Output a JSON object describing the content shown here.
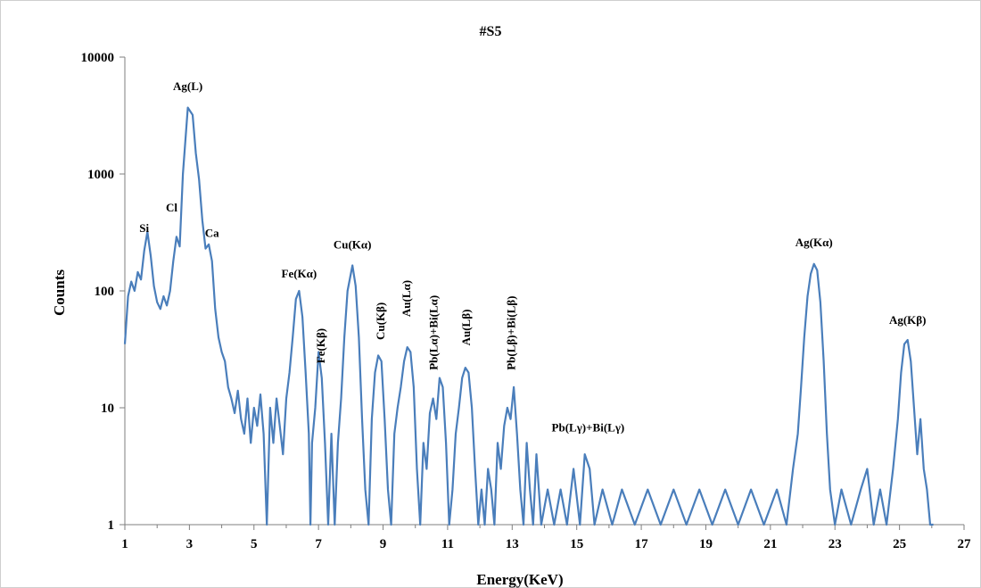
{
  "chart_data": {
    "type": "line",
    "title": "#S5",
    "xlabel": "Energy(KeV)",
    "ylabel": "Counts",
    "xlim": [
      1,
      27
    ],
    "ylim": [
      1,
      10000
    ],
    "y_scale": "log",
    "grid": false,
    "x_ticks": [
      1,
      3,
      5,
      7,
      9,
      11,
      13,
      15,
      17,
      19,
      21,
      23,
      25,
      27
    ],
    "y_ticks": [
      1,
      10,
      100,
      1000,
      10000
    ],
    "line_color": "#4a7ebb",
    "annotations": [
      {
        "text": "Si",
        "x": 1.6,
        "y": 320,
        "rotate": false
      },
      {
        "text": "Cl",
        "x": 2.45,
        "y": 480,
        "rotate": false
      },
      {
        "text": "Ag(L)",
        "x": 2.95,
        "y": 5200,
        "rotate": false
      },
      {
        "text": "Ca",
        "x": 3.7,
        "y": 290,
        "rotate": false
      },
      {
        "text": "Fe(Kα)",
        "x": 6.4,
        "y": 130,
        "rotate": false
      },
      {
        "text": "Fe(Kβ)",
        "x": 7.05,
        "y": 24,
        "rotate": true
      },
      {
        "text": "Cu(Kα)",
        "x": 8.05,
        "y": 230,
        "rotate": false
      },
      {
        "text": "Cu(Kβ)",
        "x": 8.9,
        "y": 38,
        "rotate": true
      },
      {
        "text": "Au(Lα)",
        "x": 9.7,
        "y": 60,
        "rotate": true
      },
      {
        "text": "Pb(Lα)+Bi(Lα)",
        "x": 10.55,
        "y": 21,
        "rotate": true
      },
      {
        "text": "Au(Lβ)",
        "x": 11.55,
        "y": 34,
        "rotate": true
      },
      {
        "text": "Pb(Lβ)+Bi(Lβ)",
        "x": 12.95,
        "y": 21,
        "rotate": true
      },
      {
        "text": "Pb(Lγ)+Bi(Lγ)",
        "x": 15.35,
        "y": 6.3,
        "rotate": false
      },
      {
        "text": "Ag(Kα)",
        "x": 22.35,
        "y": 240,
        "rotate": false
      },
      {
        "text": "Ag(Kβ)",
        "x": 25.25,
        "y": 52,
        "rotate": false
      }
    ],
    "series": [
      {
        "values": [
          [
            1.0,
            35
          ],
          [
            1.1,
            90
          ],
          [
            1.2,
            120
          ],
          [
            1.3,
            100
          ],
          [
            1.4,
            145
          ],
          [
            1.5,
            125
          ],
          [
            1.6,
            220
          ],
          [
            1.7,
            320
          ],
          [
            1.8,
            200
          ],
          [
            1.9,
            110
          ],
          [
            2.0,
            80
          ],
          [
            2.1,
            70
          ],
          [
            2.2,
            90
          ],
          [
            2.3,
            75
          ],
          [
            2.4,
            100
          ],
          [
            2.5,
            180
          ],
          [
            2.6,
            290
          ],
          [
            2.7,
            240
          ],
          [
            2.8,
            1000
          ],
          [
            2.95,
            3700
          ],
          [
            3.1,
            3200
          ],
          [
            3.2,
            1500
          ],
          [
            3.3,
            900
          ],
          [
            3.4,
            400
          ],
          [
            3.5,
            230
          ],
          [
            3.6,
            250
          ],
          [
            3.7,
            180
          ],
          [
            3.8,
            70
          ],
          [
            3.9,
            40
          ],
          [
            4.0,
            30
          ],
          [
            4.1,
            25
          ],
          [
            4.2,
            15
          ],
          [
            4.3,
            12
          ],
          [
            4.4,
            9
          ],
          [
            4.5,
            14
          ],
          [
            4.6,
            8
          ],
          [
            4.7,
            6
          ],
          [
            4.8,
            12
          ],
          [
            4.9,
            5
          ],
          [
            5.0,
            10
          ],
          [
            5.1,
            7
          ],
          [
            5.2,
            13
          ],
          [
            5.3,
            6
          ],
          [
            5.4,
            1
          ],
          [
            5.5,
            10
          ],
          [
            5.6,
            5
          ],
          [
            5.7,
            12
          ],
          [
            5.8,
            7
          ],
          [
            5.9,
            4
          ],
          [
            6.0,
            12
          ],
          [
            6.1,
            20
          ],
          [
            6.2,
            40
          ],
          [
            6.3,
            85
          ],
          [
            6.4,
            100
          ],
          [
            6.5,
            60
          ],
          [
            6.6,
            20
          ],
          [
            6.7,
            6
          ],
          [
            6.75,
            1
          ],
          [
            6.8,
            5
          ],
          [
            6.9,
            10
          ],
          [
            7.0,
            30
          ],
          [
            7.1,
            18
          ],
          [
            7.2,
            5
          ],
          [
            7.3,
            1
          ],
          [
            7.4,
            6
          ],
          [
            7.5,
            1
          ],
          [
            7.6,
            5
          ],
          [
            7.7,
            12
          ],
          [
            7.8,
            40
          ],
          [
            7.9,
            100
          ],
          [
            8.05,
            165
          ],
          [
            8.15,
            110
          ],
          [
            8.25,
            40
          ],
          [
            8.35,
            8
          ],
          [
            8.45,
            2
          ],
          [
            8.55,
            1
          ],
          [
            8.65,
            8
          ],
          [
            8.75,
            20
          ],
          [
            8.85,
            28
          ],
          [
            8.95,
            25
          ],
          [
            9.05,
            8
          ],
          [
            9.15,
            2
          ],
          [
            9.25,
            1
          ],
          [
            9.35,
            6
          ],
          [
            9.45,
            10
          ],
          [
            9.55,
            15
          ],
          [
            9.65,
            25
          ],
          [
            9.75,
            33
          ],
          [
            9.85,
            30
          ],
          [
            9.95,
            15
          ],
          [
            10.05,
            3
          ],
          [
            10.15,
            1
          ],
          [
            10.25,
            5
          ],
          [
            10.35,
            3
          ],
          [
            10.45,
            9
          ],
          [
            10.55,
            12
          ],
          [
            10.65,
            8
          ],
          [
            10.75,
            18
          ],
          [
            10.85,
            15
          ],
          [
            10.95,
            5
          ],
          [
            11.05,
            1
          ],
          [
            11.15,
            2
          ],
          [
            11.25,
            6
          ],
          [
            11.35,
            10
          ],
          [
            11.45,
            18
          ],
          [
            11.55,
            22
          ],
          [
            11.65,
            20
          ],
          [
            11.75,
            10
          ],
          [
            11.85,
            3
          ],
          [
            11.95,
            1
          ],
          [
            12.05,
            2
          ],
          [
            12.15,
            1
          ],
          [
            12.25,
            3
          ],
          [
            12.35,
            2
          ],
          [
            12.45,
            1
          ],
          [
            12.55,
            5
          ],
          [
            12.65,
            3
          ],
          [
            12.75,
            7
          ],
          [
            12.85,
            10
          ],
          [
            12.95,
            8
          ],
          [
            13.05,
            15
          ],
          [
            13.15,
            6
          ],
          [
            13.25,
            2
          ],
          [
            13.35,
            1
          ],
          [
            13.45,
            5
          ],
          [
            13.55,
            2
          ],
          [
            13.65,
            1
          ],
          [
            13.75,
            4
          ],
          [
            13.9,
            1
          ],
          [
            14.1,
            2
          ],
          [
            14.3,
            1
          ],
          [
            14.5,
            2
          ],
          [
            14.7,
            1
          ],
          [
            14.9,
            3
          ],
          [
            15.1,
            1
          ],
          [
            15.25,
            4
          ],
          [
            15.4,
            3
          ],
          [
            15.55,
            1
          ],
          [
            15.8,
            2
          ],
          [
            16.1,
            1
          ],
          [
            16.4,
            2
          ],
          [
            16.8,
            1
          ],
          [
            17.2,
            2
          ],
          [
            17.6,
            1
          ],
          [
            18.0,
            2
          ],
          [
            18.4,
            1
          ],
          [
            18.8,
            2
          ],
          [
            19.2,
            1
          ],
          [
            19.6,
            2
          ],
          [
            20.0,
            1
          ],
          [
            20.4,
            2
          ],
          [
            20.8,
            1
          ],
          [
            21.2,
            2
          ],
          [
            21.5,
            1
          ],
          [
            21.7,
            3
          ],
          [
            21.85,
            6
          ],
          [
            21.95,
            15
          ],
          [
            22.05,
            40
          ],
          [
            22.15,
            90
          ],
          [
            22.25,
            140
          ],
          [
            22.35,
            170
          ],
          [
            22.45,
            150
          ],
          [
            22.55,
            80
          ],
          [
            22.65,
            25
          ],
          [
            22.75,
            6
          ],
          [
            22.85,
            2
          ],
          [
            23.0,
            1
          ],
          [
            23.2,
            2
          ],
          [
            23.5,
            1
          ],
          [
            23.8,
            2
          ],
          [
            24.0,
            3
          ],
          [
            24.2,
            1
          ],
          [
            24.4,
            2
          ],
          [
            24.6,
            1
          ],
          [
            24.8,
            3
          ],
          [
            24.95,
            8
          ],
          [
            25.05,
            20
          ],
          [
            25.15,
            35
          ],
          [
            25.25,
            38
          ],
          [
            25.35,
            25
          ],
          [
            25.45,
            10
          ],
          [
            25.55,
            4
          ],
          [
            25.65,
            8
          ],
          [
            25.75,
            3
          ],
          [
            25.85,
            2
          ],
          [
            25.95,
            1
          ],
          [
            26.05,
            1
          ]
        ]
      }
    ]
  }
}
